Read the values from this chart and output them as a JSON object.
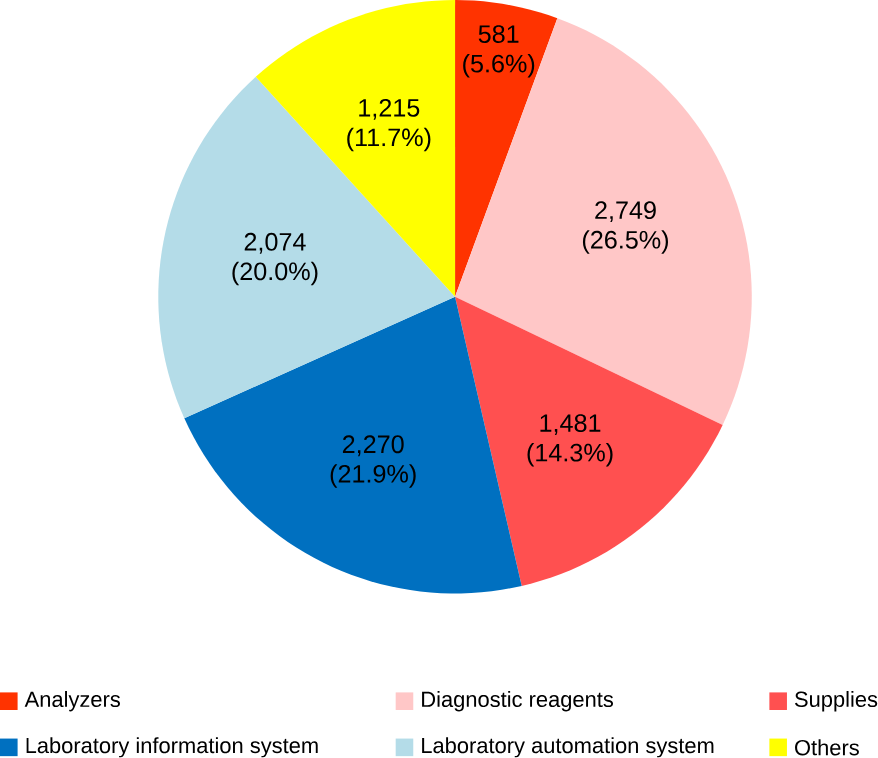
{
  "chart_data": {
    "type": "pie",
    "categories": [
      "Analyzers",
      "Diagnostic reagents",
      "Supplies",
      "Laboratory information system",
      "Laboratory automation system",
      "Others"
    ],
    "values": [
      581,
      2749,
      1481,
      2270,
      2074,
      1215
    ],
    "colors": [
      "#ff3300",
      "#ffc7c7",
      "#ff5050",
      "#0070c0",
      "#b4dce8",
      "#ffff00"
    ],
    "value_labels": [
      "581 (5.6%)",
      "2,749 (26.5%)",
      "1,481 (14.3%)",
      "2,270 (21.9%)",
      "2,074 (20.0%)",
      "1,215 (11.7%)"
    ],
    "legend": "bottom"
  }
}
